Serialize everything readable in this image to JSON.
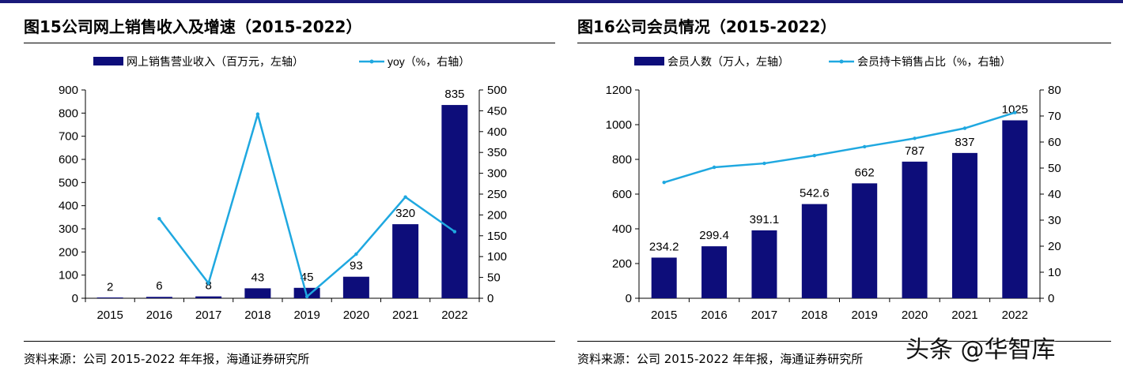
{
  "watermark": "头条 @华智库",
  "colors": {
    "bar": "#0d0d7a",
    "line": "#1fa8e0",
    "axis": "#000000"
  },
  "chart_data": [
    {
      "type": "bar+line",
      "title": "图15公司网上销售收入及增速（2015-2022）",
      "source": "资料来源：公司 2015-2022 年年报，海通证券研究所",
      "categories": [
        "2015",
        "2016",
        "2017",
        "2018",
        "2019",
        "2020",
        "2021",
        "2022"
      ],
      "series": [
        {
          "name": "网上销售营业收入（百万元，左轴）",
          "kind": "bar",
          "axis": "left",
          "values": [
            2,
            6,
            8,
            43,
            45,
            93,
            320,
            835
          ],
          "labels": [
            "2",
            "6",
            "8",
            "43",
            "45",
            "93",
            "320",
            "835"
          ]
        },
        {
          "name": "yoy（%，右轴）",
          "kind": "line",
          "axis": "right",
          "values": [
            null,
            191,
            36,
            442,
            4,
            106,
            243,
            160
          ]
        }
      ],
      "ylim_left": [
        0,
        900
      ],
      "yticks_left": [
        0,
        100,
        200,
        300,
        400,
        500,
        600,
        700,
        800,
        900
      ],
      "ylim_right": [
        0,
        500
      ],
      "yticks_right": [
        0,
        50,
        100,
        150,
        200,
        250,
        300,
        350,
        400,
        450,
        500
      ],
      "legend_position": "top"
    },
    {
      "type": "bar+line",
      "title": "图16公司会员情况（2015-2022）",
      "source": "资料来源：公司 2015-2022 年年报，海通证券研究所",
      "categories": [
        "2015",
        "2016",
        "2017",
        "2018",
        "2019",
        "2020",
        "2021",
        "2022"
      ],
      "series": [
        {
          "name": "会员人数（万人，左轴）",
          "kind": "bar",
          "axis": "left",
          "values": [
            234.2,
            299.4,
            391.1,
            542.6,
            662,
            787,
            837,
            1025
          ],
          "labels": [
            "234.2",
            "299.4",
            "391.1",
            "542.6",
            "662",
            "787",
            "837",
            "1025"
          ]
        },
        {
          "name": "会员持卡销售占比（%，右轴）",
          "kind": "line",
          "axis": "right",
          "values": [
            44.5,
            50.3,
            51.8,
            54.8,
            58.2,
            61.4,
            65.3,
            71.3
          ]
        }
      ],
      "ylim_left": [
        0,
        1200
      ],
      "yticks_left": [
        0,
        200,
        400,
        600,
        800,
        1000,
        1200
      ],
      "ylim_right": [
        0,
        80
      ],
      "yticks_right": [
        0,
        10,
        20,
        30,
        40,
        50,
        60,
        70,
        80
      ],
      "legend_position": "top"
    }
  ]
}
